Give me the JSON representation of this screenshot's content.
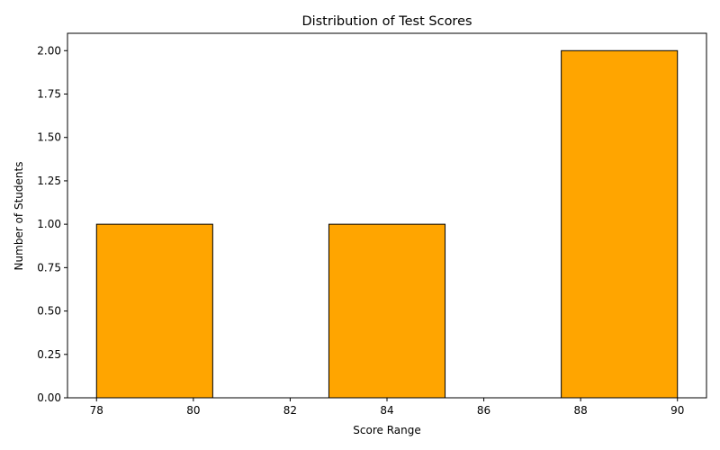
{
  "chart_data": {
    "type": "bar",
    "title": "Distribution of Test Scores",
    "xlabel": "Score Range",
    "ylabel": "Number of Students",
    "bins": [
      {
        "start": 78.0,
        "end": 80.4,
        "count": 1
      },
      {
        "start": 80.4,
        "end": 82.8,
        "count": 0
      },
      {
        "start": 82.8,
        "end": 85.2,
        "count": 1
      },
      {
        "start": 85.2,
        "end": 87.6,
        "count": 0
      },
      {
        "start": 87.6,
        "end": 90.0,
        "count": 2
      }
    ],
    "xlim": [
      77.4,
      90.6
    ],
    "ylim": [
      0,
      2.1
    ],
    "xticks": [
      78,
      80,
      82,
      84,
      86,
      88,
      90
    ],
    "xtick_labels": [
      "78",
      "80",
      "82",
      "84",
      "86",
      "88",
      "90"
    ],
    "yticks": [
      0,
      0.25,
      0.5,
      0.75,
      1.0,
      1.25,
      1.5,
      1.75,
      2.0
    ],
    "ytick_labels": [
      "0.00",
      "0.25",
      "0.50",
      "0.75",
      "1.00",
      "1.25",
      "1.50",
      "1.75",
      "2.00"
    ],
    "grid": false,
    "colors": {
      "bar_fill": "#ffa500",
      "bar_edge": "#000000",
      "axis": "#000000"
    }
  }
}
